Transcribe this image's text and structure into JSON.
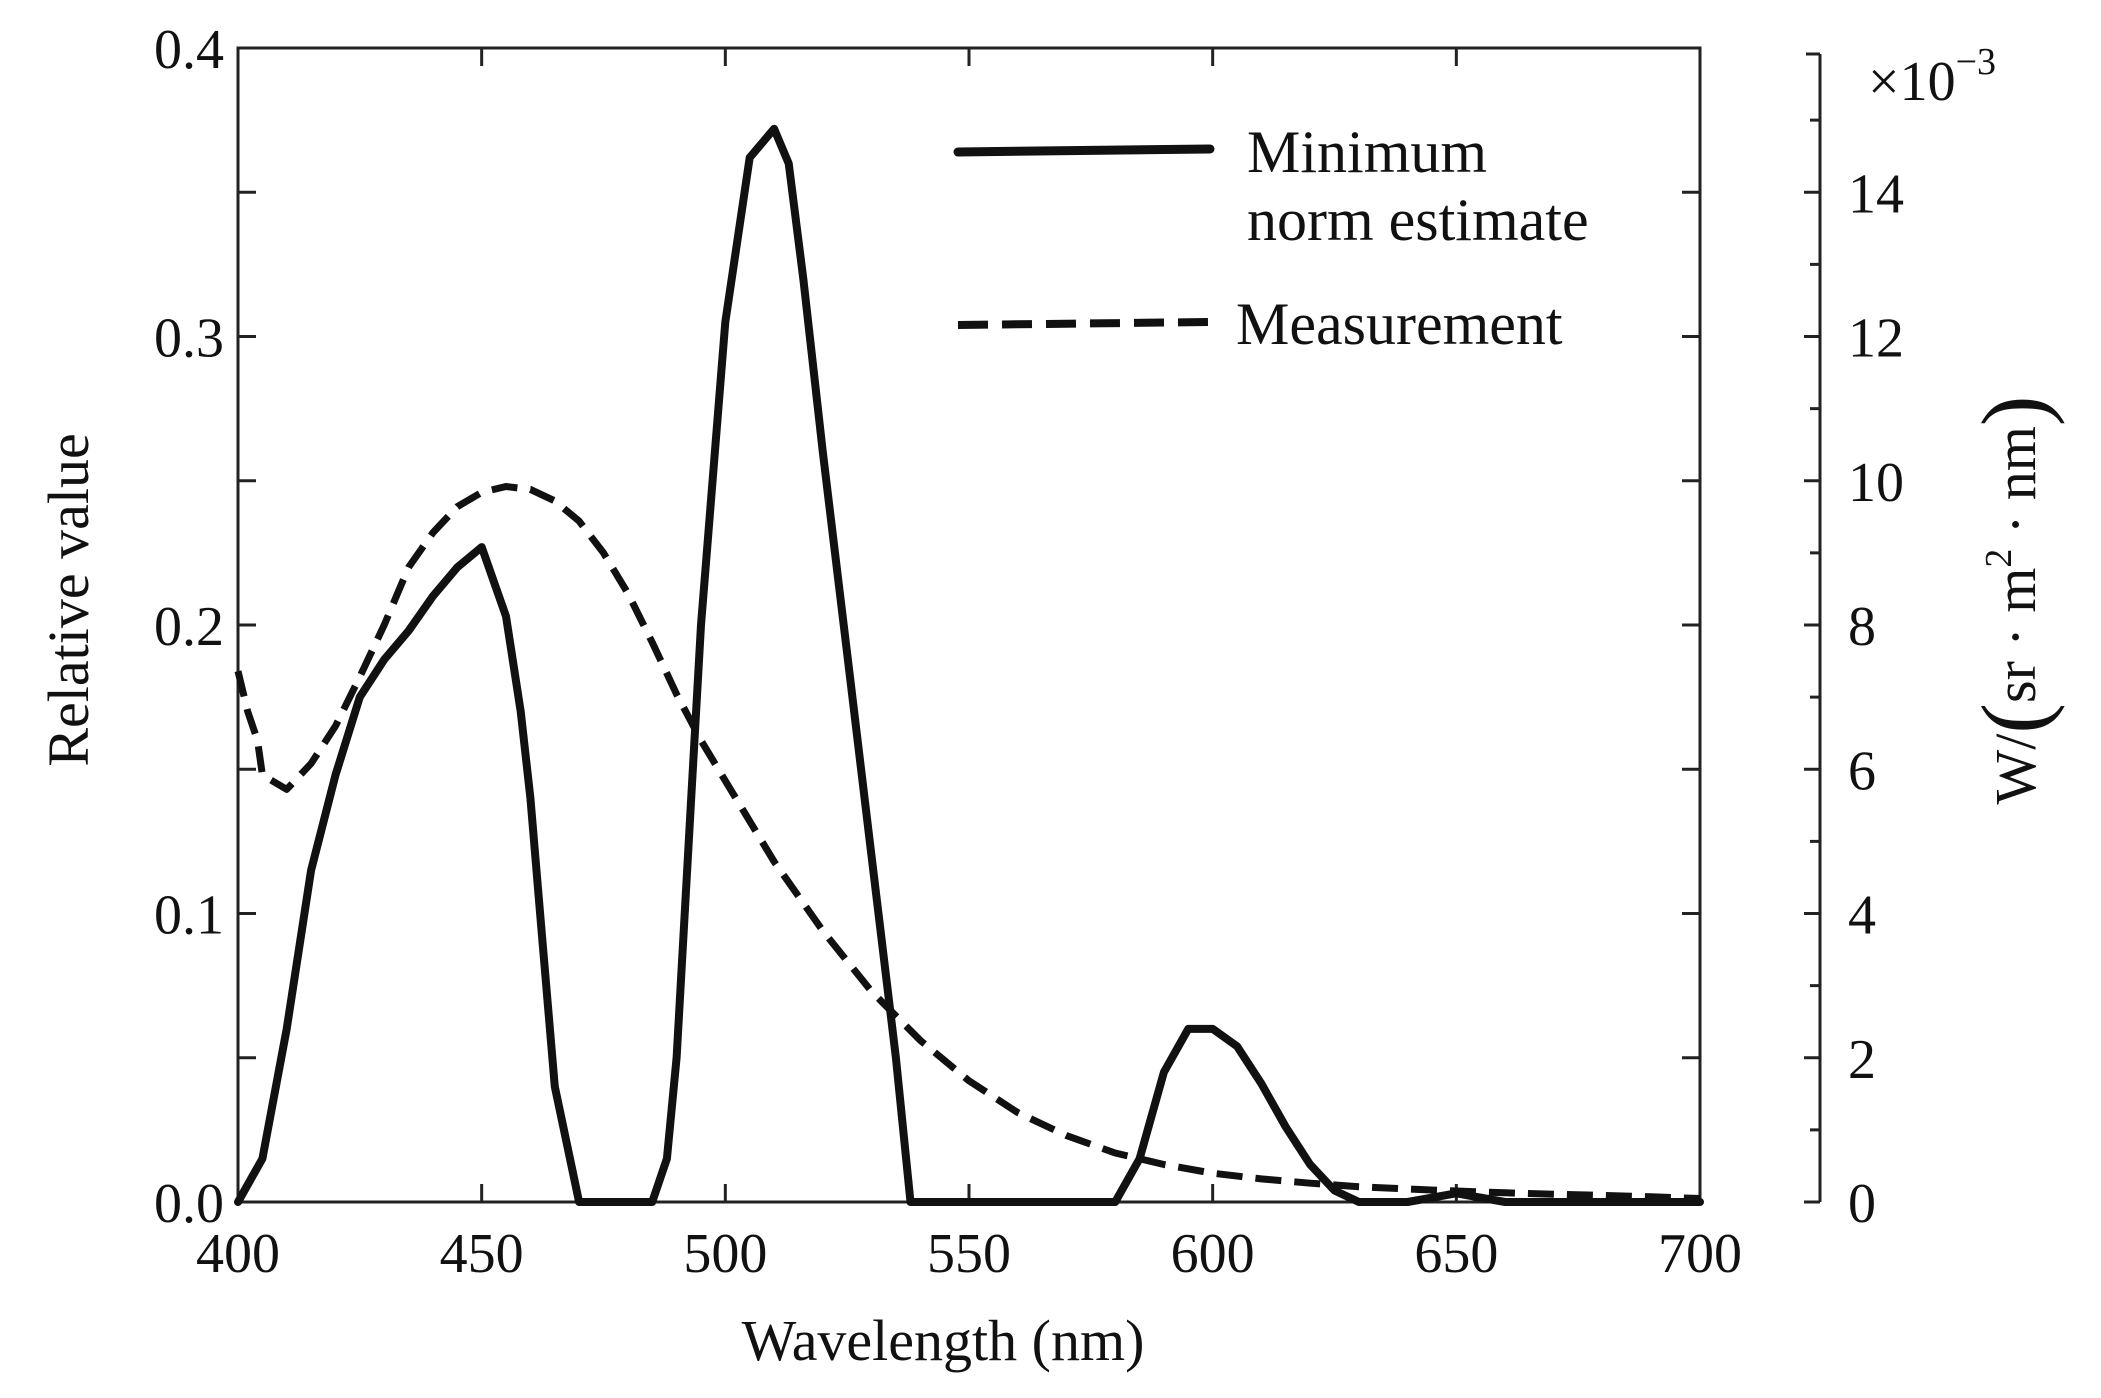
{
  "chart_data": {
    "type": "line",
    "title": "",
    "xlabel": "Wavelength (nm)",
    "ylabel": "Relative value",
    "y2label": {
      "prefix": "W/",
      "paren_open": "(",
      "unit_base": "sr · m",
      "unit_exp": "2",
      "unit_tail": " · nm",
      "paren_close": ")"
    },
    "xlim": [
      400,
      700
    ],
    "ylim": [
      0,
      0.4
    ],
    "y2lim": [
      0,
      0.016
    ],
    "x_ticks": [
      {
        "value": 400,
        "label": "400"
      },
      {
        "value": 450,
        "label": "450"
      },
      {
        "value": 500,
        "label": "500"
      },
      {
        "value": 550,
        "label": "550"
      },
      {
        "value": 600,
        "label": "600"
      },
      {
        "value": 650,
        "label": "650"
      },
      {
        "value": 700,
        "label": "700"
      }
    ],
    "y_ticks": [
      {
        "value": 0.0,
        "label": "0.0"
      },
      {
        "value": 0.1,
        "label": "0.1"
      },
      {
        "value": 0.2,
        "label": "0.2"
      },
      {
        "value": 0.3,
        "label": "0.3"
      },
      {
        "value": 0.4,
        "label": "0.4"
      }
    ],
    "y_minor_ticks": [
      0.05,
      0.15,
      0.25,
      0.35
    ],
    "y2_ticks": [
      {
        "value": 0,
        "label": "0"
      },
      {
        "value": 2,
        "label": "2"
      },
      {
        "value": 4,
        "label": "4"
      },
      {
        "value": 6,
        "label": "6"
      },
      {
        "value": 8,
        "label": "8"
      },
      {
        "value": 10,
        "label": "10"
      },
      {
        "value": 12,
        "label": "12"
      },
      {
        "value": 14,
        "label": "14"
      }
    ],
    "y2_multiplier": {
      "base": "×10",
      "exp": "−3"
    },
    "legend_position": "top-right",
    "series": [
      {
        "name": "Minimum norm estimate",
        "legend_lines": [
          "Minimum",
          "norm estimate"
        ],
        "style": "solid",
        "color": "#111111",
        "x": [
          400,
          405,
          410,
          415,
          420,
          425,
          430,
          435,
          440,
          445,
          450,
          455,
          458,
          460,
          462,
          465,
          470,
          475,
          480,
          485,
          488,
          490,
          493,
          495,
          500,
          505,
          510,
          513,
          516,
          520,
          525,
          530,
          535,
          538,
          540,
          545,
          550,
          560,
          570,
          580,
          585,
          590,
          595,
          600,
          605,
          610,
          615,
          620,
          625,
          630,
          640,
          650,
          660,
          680,
          700
        ],
        "y": [
          0.0,
          0.015,
          0.06,
          0.115,
          0.148,
          0.175,
          0.188,
          0.198,
          0.21,
          0.22,
          0.227,
          0.203,
          0.17,
          0.14,
          0.1,
          0.04,
          0.0,
          0.0,
          0.0,
          0.0,
          0.015,
          0.05,
          0.14,
          0.2,
          0.305,
          0.362,
          0.372,
          0.36,
          0.32,
          0.26,
          0.19,
          0.12,
          0.05,
          0.0,
          0.0,
          0.0,
          0.0,
          0.0,
          0.0,
          0.0,
          0.015,
          0.045,
          0.06,
          0.06,
          0.054,
          0.041,
          0.026,
          0.013,
          0.004,
          0.0,
          0.0,
          0.003,
          0.0,
          0.0,
          0.0
        ]
      },
      {
        "name": "Measurement",
        "legend_lines": [
          "Measurement"
        ],
        "style": "dashed",
        "color": "#111111",
        "x": [
          400,
          402,
          404,
          405,
          410,
          415,
          420,
          425,
          430,
          435,
          440,
          445,
          450,
          455,
          460,
          465,
          470,
          475,
          480,
          485,
          490,
          495,
          500,
          510,
          520,
          530,
          540,
          550,
          560,
          570,
          580,
          590,
          600,
          610,
          620,
          630,
          640,
          650,
          660,
          670,
          680,
          690,
          700
        ],
        "y": [
          0.184,
          0.17,
          0.16,
          0.148,
          0.143,
          0.152,
          0.165,
          0.182,
          0.2,
          0.22,
          0.232,
          0.241,
          0.246,
          0.248,
          0.247,
          0.243,
          0.236,
          0.225,
          0.211,
          0.194,
          0.176,
          0.16,
          0.146,
          0.118,
          0.094,
          0.073,
          0.056,
          0.042,
          0.031,
          0.023,
          0.017,
          0.013,
          0.01,
          0.008,
          0.0065,
          0.0053,
          0.0045,
          0.0038,
          0.0032,
          0.0027,
          0.0023,
          0.0018,
          0.0012
        ]
      }
    ]
  }
}
